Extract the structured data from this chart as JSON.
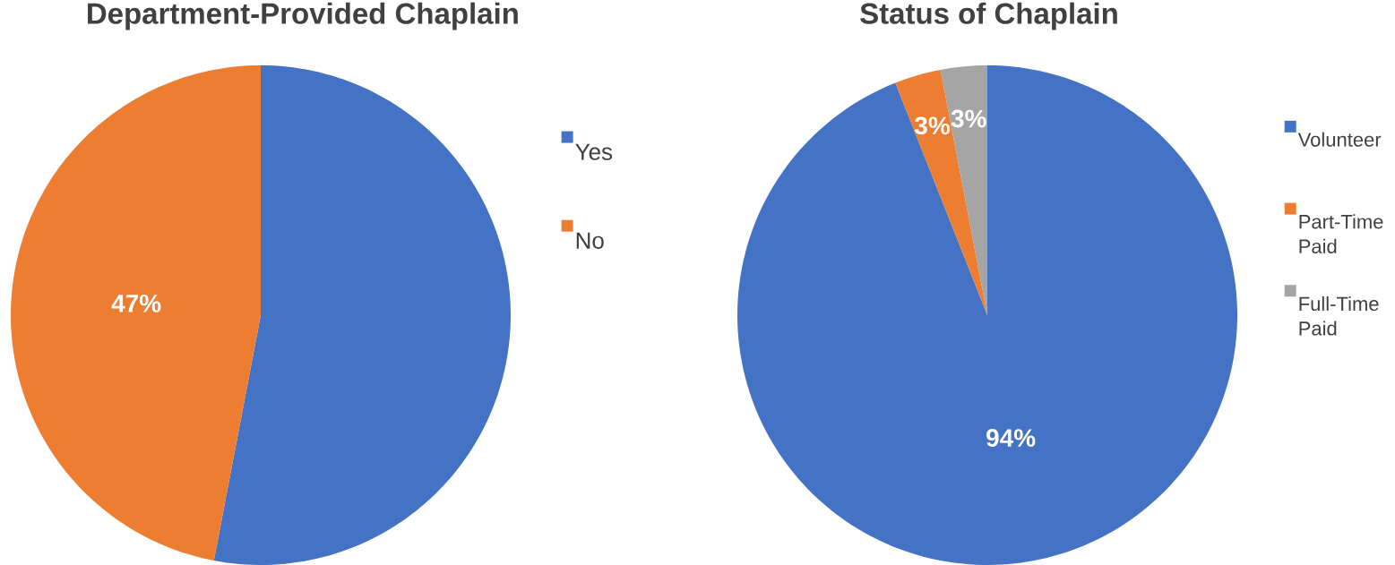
{
  "chart_data": [
    {
      "type": "pie",
      "title": "Department-Provided  Chaplain",
      "categories": [
        "Yes",
        "No"
      ],
      "values": [
        53,
        47
      ],
      "colors": [
        "#4472c4",
        "#ed7d31"
      ],
      "value_labels": [
        null,
        "47%"
      ],
      "legend": "right"
    },
    {
      "type": "pie",
      "title": "Status of Chaplain",
      "categories": [
        "Volunteer",
        "Part-Time Paid",
        "Full-Time Paid"
      ],
      "values": [
        94,
        3,
        3
      ],
      "colors": [
        "#4472c4",
        "#ed7d31",
        "#a5a5a5"
      ],
      "value_labels": [
        "94%",
        "3%",
        "3%"
      ],
      "legend": "right"
    }
  ]
}
